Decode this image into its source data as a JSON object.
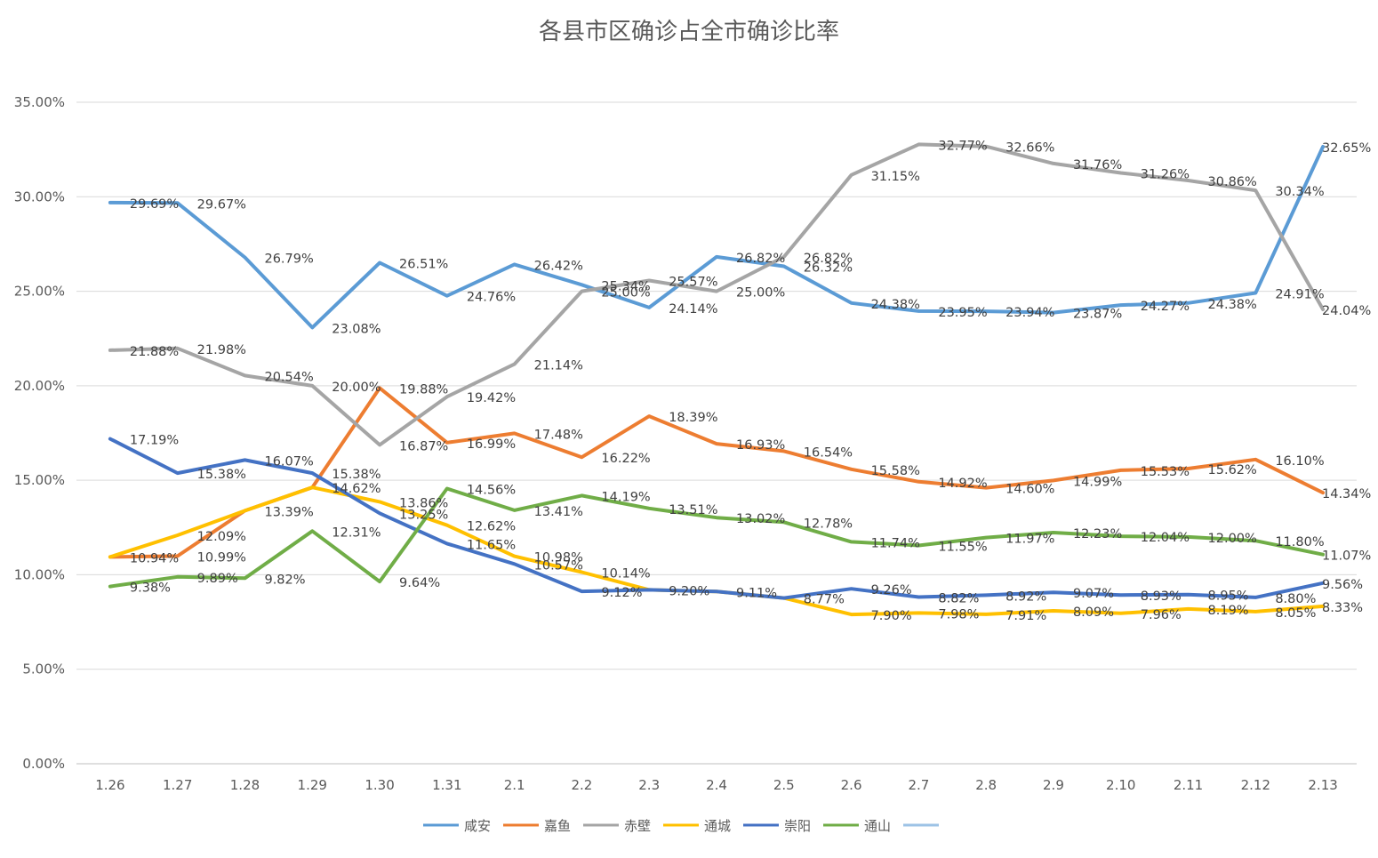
{
  "chart_data": {
    "type": "line",
    "title": "各县市区确诊占全市确诊比率",
    "xlabel": "",
    "ylabel": "",
    "ylim": [
      0,
      35
    ],
    "yticks": [
      "0.00%",
      "5.00%",
      "10.00%",
      "15.00%",
      "20.00%",
      "25.00%",
      "30.00%",
      "35.00%"
    ],
    "categories": [
      "1.26",
      "1.27",
      "1.28",
      "1.29",
      "1.30",
      "1.31",
      "2.1",
      "2.2",
      "2.3",
      "2.4",
      "2.5",
      "2.6",
      "2.7",
      "2.8",
      "2.9",
      "2.10",
      "2.11",
      "2.12",
      "2.13"
    ],
    "grid": true,
    "legend_position": "bottom",
    "series": [
      {
        "name": "咸安",
        "color": "#5b9bd5",
        "values": [
          29.69,
          29.67,
          26.79,
          23.08,
          26.51,
          24.76,
          26.42,
          25.34,
          24.14,
          26.82,
          26.32,
          24.38,
          23.95,
          23.94,
          23.87,
          24.27,
          24.38,
          24.91,
          32.65
        ],
        "labels": [
          "29.69%",
          "29.67%",
          "26.79%",
          "23.08%",
          "26.51%",
          "24.76%",
          "26.42%",
          "25.34%",
          "24.14%",
          "26.82%",
          "26.32%",
          "24.38%",
          "23.95%",
          "23.94%",
          "23.87%",
          "24.27%",
          "24.38%",
          "24.91%",
          "32.65%"
        ]
      },
      {
        "name": "嘉鱼",
        "color": "#ed7d31",
        "values": [
          10.94,
          10.99,
          13.39,
          14.62,
          19.88,
          16.99,
          17.48,
          16.22,
          18.39,
          16.93,
          16.54,
          15.58,
          14.92,
          14.6,
          14.99,
          15.53,
          15.62,
          16.1,
          14.34
        ],
        "labels": [
          "10.94%",
          "10.99%",
          "13.39%",
          "14.62%",
          "19.88%",
          "16.99%",
          "17.48%",
          "16.22%",
          "18.39%",
          "16.93%",
          "16.54%",
          "15.58%",
          "14.92%",
          "14.60%",
          "14.99%",
          "15.53%",
          "15.62%",
          "16.10%",
          "14.34%"
        ]
      },
      {
        "name": "赤壁",
        "color": "#a5a5a5",
        "values": [
          21.88,
          21.98,
          20.54,
          20.0,
          16.87,
          19.42,
          21.14,
          25.0,
          25.57,
          25.0,
          26.82,
          31.15,
          32.77,
          32.66,
          31.76,
          31.26,
          30.86,
          30.34,
          24.04
        ],
        "labels": [
          "21.88%",
          "21.98%",
          "20.54%",
          "20.00%",
          "16.87%",
          "19.42%",
          "21.14%",
          "25.00%",
          "25.57%",
          "25.00%",
          "26.82%",
          "31.15%",
          "32.77%",
          "32.66%",
          "31.76%",
          "31.26%",
          "30.86%",
          "30.34%",
          "24.04%"
        ]
      },
      {
        "name": "通城",
        "color": "#ffc000",
        "values": [
          10.94,
          12.09,
          13.39,
          14.62,
          13.86,
          12.62,
          10.98,
          10.14,
          9.2,
          9.11,
          8.77,
          7.9,
          7.98,
          7.91,
          8.09,
          7.96,
          8.19,
          8.05,
          8.33
        ],
        "labels": [
          "",
          "12.09%",
          "",
          "",
          "13.86%",
          "12.62%",
          "10.98%",
          "10.14%",
          "",
          "",
          "8.77%",
          "7.90%",
          "7.98%",
          "7.91%",
          "8.09%",
          "7.96%",
          "8.19%",
          "8.05%",
          "8.33%"
        ]
      },
      {
        "name": "崇阳",
        "color": "#4472c4",
        "values": [
          17.19,
          15.38,
          16.07,
          15.38,
          13.25,
          11.65,
          10.57,
          9.12,
          9.2,
          9.11,
          8.77,
          9.26,
          8.82,
          8.92,
          9.07,
          8.93,
          8.95,
          8.8,
          9.56
        ],
        "labels": [
          "17.19%",
          "15.38%",
          "16.07%",
          "15.38%",
          "13.25%",
          "11.65%",
          "10.57%",
          "9.12%",
          "9.20%",
          "9.11%",
          "",
          "9.26%",
          "8.82%",
          "8.92%",
          "9.07%",
          "8.93%",
          "8.95%",
          "8.80%",
          "9.56%"
        ]
      },
      {
        "name": "通山",
        "color": "#70ad47",
        "values": [
          9.38,
          9.89,
          9.82,
          12.31,
          9.64,
          14.56,
          13.41,
          14.19,
          13.51,
          13.02,
          12.78,
          11.74,
          11.55,
          11.97,
          12.23,
          12.04,
          12.0,
          11.8,
          11.07
        ],
        "labels": [
          "9.38%",
          "9.89%",
          "9.82%",
          "12.31%",
          "9.64%",
          "14.56%",
          "13.41%",
          "14.19%",
          "13.51%",
          "13.02%",
          "12.78%",
          "11.74%",
          "11.55%",
          "11.97%",
          "12.23%",
          "12.04%",
          "12.00%",
          "11.80%",
          "11.07%"
        ]
      }
    ],
    "legend_extra": {
      "name": "",
      "color": "#9dc3e6"
    }
  }
}
